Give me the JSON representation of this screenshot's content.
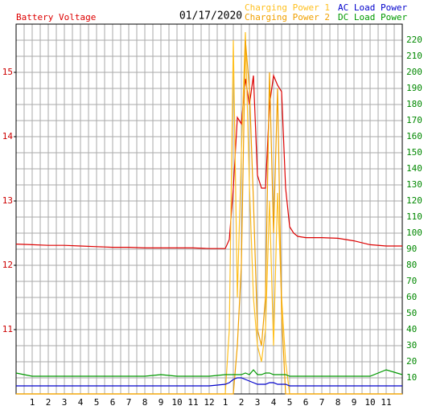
{
  "chart_data": {
    "type": "line",
    "title": "01/17/2020",
    "x": [
      0,
      1,
      2,
      3,
      4,
      5,
      6,
      7,
      8,
      9,
      10,
      11,
      12,
      13,
      13.25,
      13.5,
      13.75,
      14,
      14.25,
      14.5,
      14.75,
      15,
      15.25,
      15.5,
      15.75,
      16,
      16.25,
      16.5,
      16.75,
      17,
      17.25,
      17.5,
      18,
      19,
      20,
      21,
      22,
      23,
      24
    ],
    "xlim": [
      0,
      24
    ],
    "xticks": [
      {
        "value": 1,
        "label": "1"
      },
      {
        "value": 2,
        "label": "2"
      },
      {
        "value": 3,
        "label": "3"
      },
      {
        "value": 4,
        "label": "4"
      },
      {
        "value": 5,
        "label": "5"
      },
      {
        "value": 6,
        "label": "6"
      },
      {
        "value": 7,
        "label": "7"
      },
      {
        "value": 8,
        "label": "8"
      },
      {
        "value": 9,
        "label": "9"
      },
      {
        "value": 10,
        "label": "10"
      },
      {
        "value": 11,
        "label": "11"
      },
      {
        "value": 12,
        "label": "12"
      },
      {
        "value": 13,
        "label": "1"
      },
      {
        "value": 14,
        "label": "2"
      },
      {
        "value": 15,
        "label": "3"
      },
      {
        "value": 16,
        "label": "4"
      },
      {
        "value": 17,
        "label": "5"
      },
      {
        "value": 18,
        "label": "6"
      },
      {
        "value": 19,
        "label": "7"
      },
      {
        "value": 20,
        "label": "8"
      },
      {
        "value": 21,
        "label": "9"
      },
      {
        "value": 22,
        "label": "10"
      },
      {
        "value": 23,
        "label": "11"
      }
    ],
    "ylim": [
      10,
      15.75
    ],
    "yticks": [
      11,
      12,
      13,
      14,
      15
    ],
    "y_color": "#cc0000",
    "y2lim": [
      0,
      230
    ],
    "y2ticks": [
      10,
      20,
      30,
      40,
      50,
      60,
      70,
      80,
      90,
      100,
      110,
      120,
      130,
      140,
      150,
      160,
      170,
      180,
      190,
      200,
      210,
      220
    ],
    "y2_color": "#008800",
    "grid": true,
    "series": [
      {
        "name": "Battery Voltage",
        "color": "#dd0000",
        "axis": "y",
        "values": [
          12.33,
          12.32,
          12.31,
          12.31,
          12.3,
          12.29,
          12.28,
          12.28,
          12.27,
          12.27,
          12.27,
          12.27,
          12.26,
          12.26,
          12.4,
          13.2,
          14.3,
          14.2,
          14.9,
          14.5,
          14.95,
          13.4,
          13.2,
          13.2,
          14.5,
          14.95,
          14.8,
          14.7,
          13.2,
          12.6,
          12.5,
          12.45,
          12.43,
          12.43,
          12.42,
          12.38,
          12.32,
          12.3,
          12.3
        ]
      },
      {
        "name": "Charging Power 1",
        "color": "#ffc020",
        "axis": "y2",
        "values": [
          0,
          0,
          0,
          0,
          0,
          0,
          0,
          0,
          0,
          0,
          0,
          0,
          0,
          0,
          40,
          220,
          60,
          150,
          225,
          130,
          60,
          30,
          20,
          40,
          120,
          30,
          125,
          60,
          20,
          0,
          0,
          0,
          0,
          0,
          0,
          0,
          0,
          0,
          0
        ]
      },
      {
        "name": "Charging Power 2",
        "color": "#f0a000",
        "axis": "y2",
        "values": [
          0,
          0,
          0,
          0,
          0,
          0,
          0,
          0,
          0,
          0,
          0,
          0,
          0,
          0,
          0,
          0,
          30,
          80,
          220,
          190,
          120,
          40,
          30,
          60,
          200,
          100,
          190,
          50,
          0,
          0,
          0,
          0,
          0,
          0,
          0,
          0,
          0,
          0,
          0
        ]
      },
      {
        "name": "AC Load Power",
        "color": "#0000cc",
        "axis": "y2",
        "values": [
          5,
          5,
          5,
          5,
          5,
          5,
          5,
          5,
          5,
          5,
          5,
          5,
          5,
          6,
          7,
          9,
          10,
          10,
          9,
          8,
          7,
          6,
          6,
          6,
          7,
          7,
          6,
          6,
          6,
          5,
          5,
          5,
          5,
          5,
          5,
          5,
          5,
          5,
          5
        ]
      },
      {
        "name": "DC Load Power",
        "color": "#009900",
        "axis": "y2",
        "values": [
          13,
          11,
          11,
          11,
          11,
          11,
          11,
          11,
          11,
          12,
          11,
          11,
          11,
          12,
          12,
          12,
          12,
          12,
          13,
          12,
          15,
          12,
          12,
          13,
          13,
          12,
          12,
          12,
          12,
          11,
          11,
          11,
          11,
          11,
          11,
          11,
          11,
          15,
          12
        ]
      }
    ]
  }
}
